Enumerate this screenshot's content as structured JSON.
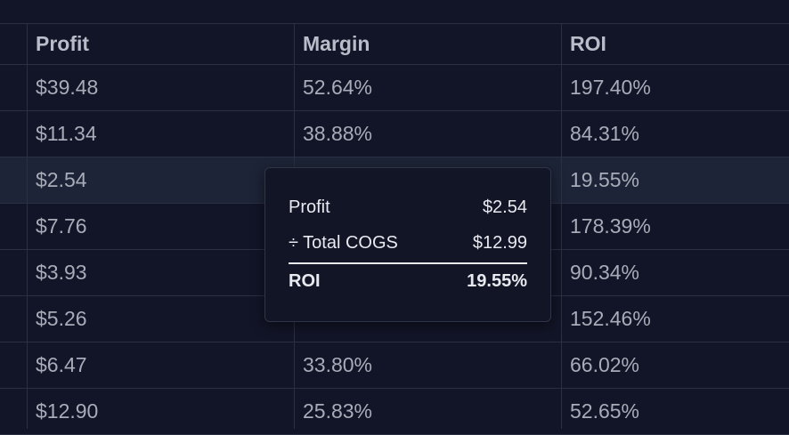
{
  "table": {
    "headers": [
      "Profit",
      "Margin",
      "ROI"
    ],
    "rows": [
      [
        "$39.48",
        "52.64%",
        "197.40%"
      ],
      [
        "$11.34",
        "38.88%",
        "84.31%"
      ],
      [
        "$2.54",
        null,
        "19.55%"
      ],
      [
        "$7.76",
        null,
        "178.39%"
      ],
      [
        "$3.93",
        null,
        "90.34%"
      ],
      [
        "$5.26",
        null,
        "152.46%"
      ],
      [
        "$6.47",
        "33.80%",
        "66.02%"
      ],
      [
        "$12.90",
        "25.83%",
        "52.65%"
      ]
    ],
    "highlighted_row": 2
  },
  "tooltip": {
    "rows": [
      {
        "label": "Profit",
        "value": "$2.54"
      },
      {
        "label": "÷ Total COGS",
        "value": "$12.99"
      }
    ],
    "total": {
      "label": "ROI",
      "value": "19.55%"
    }
  }
}
